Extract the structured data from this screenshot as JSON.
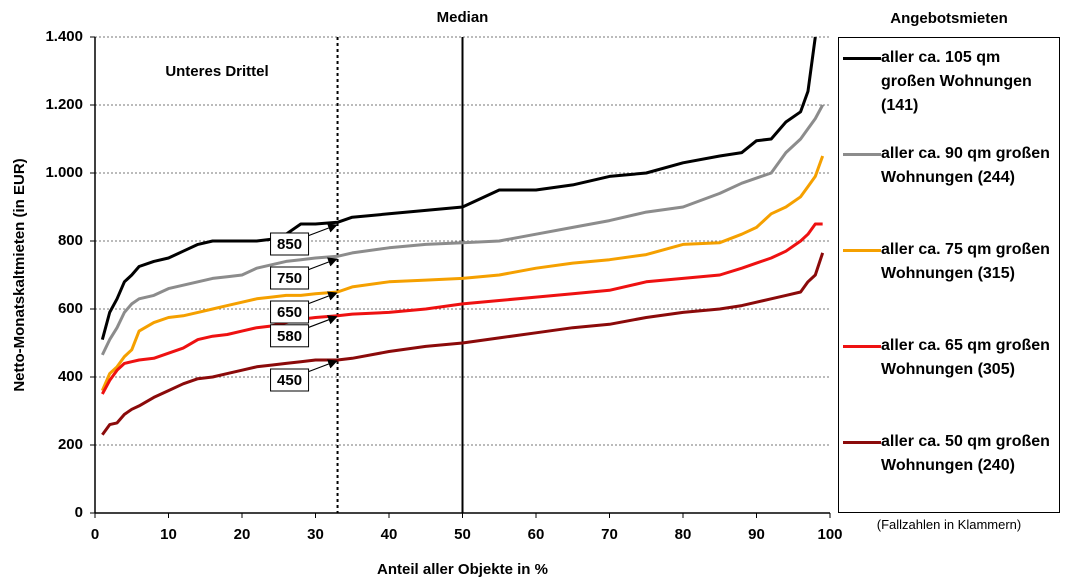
{
  "chart_data": {
    "type": "line",
    "ylabel": "Netto-Monatskaltmieten (in EUR)",
    "xlabel": "Anteil aller Objekte in %",
    "legend_title": "Angebotsmieten",
    "footnote": "(Fallzahlen in Klammern)",
    "xlim": [
      0,
      100
    ],
    "xticks": [
      0,
      10,
      20,
      30,
      40,
      50,
      60,
      70,
      80,
      90,
      100
    ],
    "ylim": [
      0,
      1400
    ],
    "yticks": [
      0,
      200,
      400,
      600,
      800,
      {
        "value": 1000,
        "label": "1.000"
      },
      {
        "value": 1200,
        "label": "1.200"
      },
      {
        "value": 1400,
        "label": "1.400"
      }
    ],
    "grid": true,
    "legend_position": "right",
    "vlines": [
      {
        "x": 33,
        "style": "dotted"
      },
      {
        "x": 50,
        "style": "solid",
        "label": "Median"
      }
    ],
    "annotation": "Unteres Drittel",
    "point_labels": [
      {
        "x": 33,
        "y": 850
      },
      {
        "x": 33,
        "y": 750
      },
      {
        "x": 33,
        "y": 650
      },
      {
        "x": 33,
        "y": 580
      },
      {
        "x": 33,
        "y": 450
      }
    ],
    "x": [
      1,
      2,
      3,
      4,
      5,
      6,
      8,
      10,
      12,
      14,
      16,
      18,
      20,
      22,
      24,
      26,
      28,
      30,
      33,
      35,
      40,
      45,
      50,
      55,
      60,
      65,
      70,
      75,
      80,
      85,
      88,
      90,
      92,
      94,
      96,
      97,
      98,
      99
    ],
    "series": [
      {
        "name": "aller ca. 105 qm großen Wohnungen (141)",
        "color": "#000000",
        "values": [
          510,
          590,
          630,
          680,
          700,
          725,
          740,
          750,
          770,
          790,
          800,
          800,
          800,
          800,
          805,
          820,
          850,
          850,
          855,
          870,
          880,
          890,
          900,
          950,
          950,
          965,
          990,
          1000,
          1030,
          1050,
          1060,
          1095,
          1100,
          1150,
          1180,
          1240,
          1400,
          null
        ]
      },
      {
        "name": "aller ca. 90 qm großen Wohnungen (244)",
        "color": "#8c8c8c",
        "values": [
          465,
          510,
          545,
          590,
          615,
          630,
          640,
          660,
          670,
          680,
          690,
          695,
          700,
          720,
          730,
          740,
          745,
          750,
          755,
          765,
          780,
          790,
          795,
          800,
          820,
          840,
          860,
          885,
          900,
          940,
          970,
          985,
          1000,
          1060,
          1100,
          1130,
          1160,
          1200
        ]
      },
      {
        "name": "aller ca. 75 qm großen Wohnungen (315)",
        "color": "#f5a000",
        "values": [
          360,
          410,
          430,
          460,
          480,
          535,
          560,
          575,
          580,
          590,
          600,
          610,
          620,
          630,
          635,
          640,
          640,
          645,
          650,
          665,
          680,
          685,
          690,
          700,
          720,
          735,
          745,
          760,
          790,
          795,
          820,
          840,
          880,
          900,
          930,
          960,
          990,
          1050
        ]
      },
      {
        "name": "aller ca. 65 qm großen Wohnungen (305)",
        "color": "#ee1111",
        "values": [
          350,
          390,
          420,
          440,
          445,
          450,
          455,
          470,
          485,
          510,
          520,
          525,
          535,
          545,
          550,
          560,
          570,
          575,
          580,
          585,
          590,
          600,
          615,
          625,
          635,
          645,
          655,
          680,
          690,
          700,
          720,
          735,
          750,
          770,
          800,
          820,
          850,
          850
        ]
      },
      {
        "name": "aller ca. 50 qm großen Wohnungen (240)",
        "color": "#8b0a0a",
        "values": [
          230,
          260,
          265,
          290,
          305,
          315,
          340,
          360,
          380,
          395,
          400,
          410,
          420,
          430,
          435,
          440,
          445,
          450,
          450,
          455,
          475,
          490,
          500,
          515,
          530,
          545,
          555,
          575,
          590,
          600,
          610,
          620,
          630,
          640,
          650,
          680,
          700,
          765
        ]
      }
    ]
  }
}
